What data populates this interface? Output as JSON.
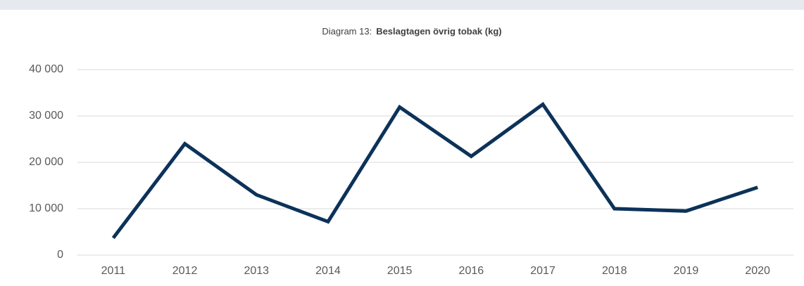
{
  "chart_data": {
    "type": "line",
    "title_label": "Diagram 13:",
    "title": "Beslagtagen övrig tobak (kg)",
    "categories": [
      "2011",
      "2012",
      "2013",
      "2014",
      "2015",
      "2016",
      "2017",
      "2018",
      "2019",
      "2020"
    ],
    "values": [
      3700,
      24000,
      13000,
      7200,
      31900,
      21300,
      32500,
      10000,
      9500,
      14600
    ],
    "color": "#0c3259",
    "ylim": [
      0,
      40000
    ],
    "yticks": [
      0,
      {
        "value": 10000,
        "label": "10 000"
      },
      {
        "value": 20000,
        "label": "20 000"
      },
      {
        "value": 30000,
        "label": "30 000"
      },
      {
        "value": 40000,
        "label": "40 000"
      }
    ],
    "grid": true
  }
}
